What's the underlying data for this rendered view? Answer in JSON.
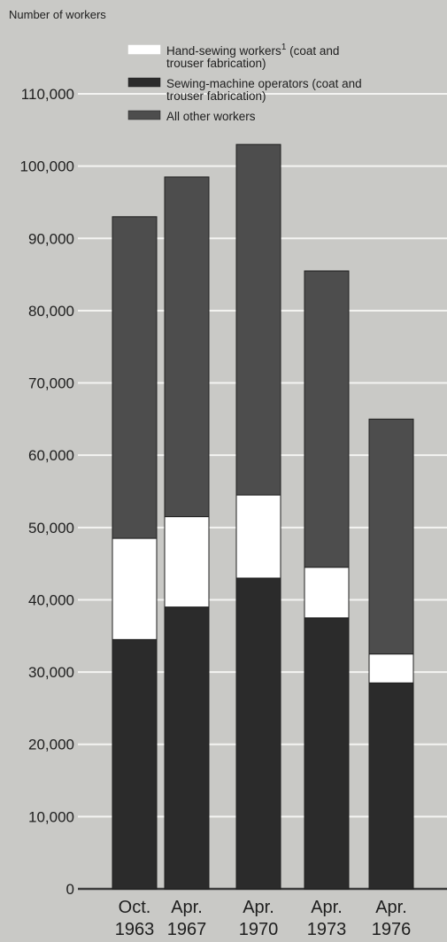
{
  "chart_data": {
    "type": "bar",
    "stacked": true,
    "ylabel": "Number of workers",
    "ylim": [
      0,
      110000
    ],
    "yticks": [
      "0",
      "10,000",
      "20,000",
      "30,000",
      "40,000",
      "50,000",
      "60,000",
      "70,000",
      "80,000",
      "90,000",
      "100,000",
      "110,000"
    ],
    "categories": [
      [
        "Oct.",
        "1963"
      ],
      [
        "Apr.",
        "1967"
      ],
      [
        "Apr.",
        "1970"
      ],
      [
        "Apr.",
        "1973"
      ],
      [
        "Apr.",
        "1976"
      ]
    ],
    "series": [
      {
        "name": "Sewing-machine operators (coat and trouser fabrication)",
        "legend_lines": [
          "Sewing-machine operators (coat and",
          "trouser fabrication)"
        ],
        "color": "#2b2b2b",
        "values": [
          34500,
          39000,
          43000,
          37500,
          28500
        ]
      },
      {
        "name": "Hand-sewing workers (coat and trouser fabrication)",
        "legend_lines": [
          "Hand-sewing workers",
          "trouser fabrication)"
        ],
        "legend_suffix": "(coat and",
        "footnote_mark": "1",
        "color": "#ffffff",
        "values": [
          14000,
          12500,
          11500,
          7000,
          4000
        ]
      },
      {
        "name": "All other workers",
        "legend_lines": [
          "All other workers"
        ],
        "color": "#4d4d4d",
        "values": [
          44500,
          47000,
          48500,
          41000,
          32500
        ]
      }
    ],
    "grid": true,
    "legend": "top-center"
  }
}
